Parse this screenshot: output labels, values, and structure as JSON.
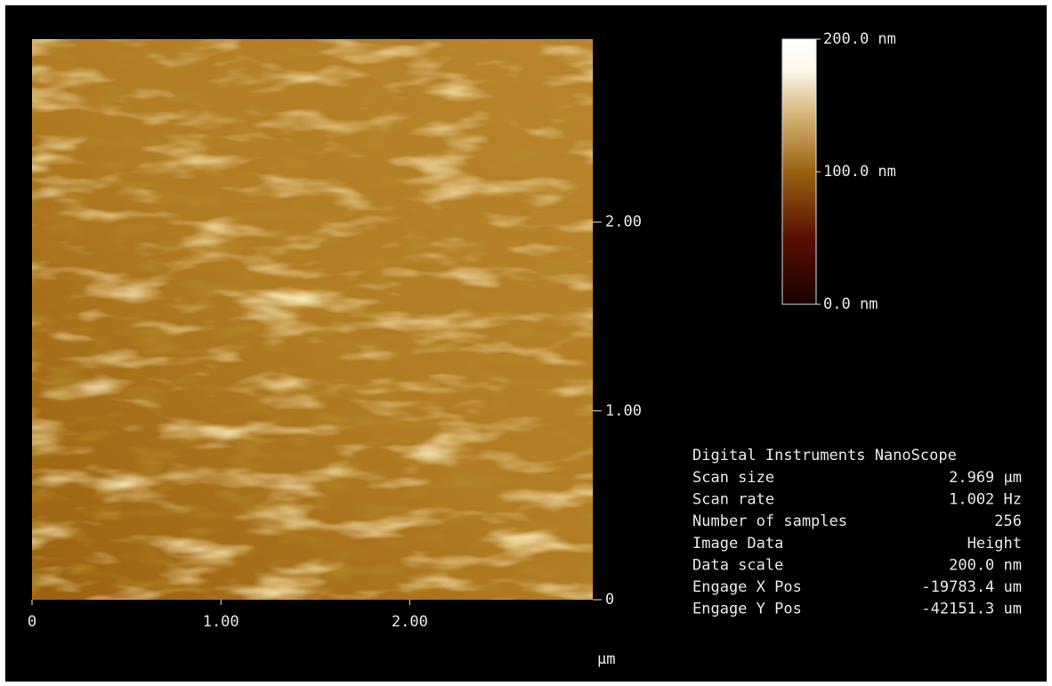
{
  "image": {
    "x_axis": {
      "range": [
        0,
        2.969
      ],
      "unit": "µm",
      "ticks": [
        {
          "value": 0,
          "label": "0"
        },
        {
          "value": 1,
          "label": "1.00"
        },
        {
          "value": 2,
          "label": "2.00"
        }
      ]
    },
    "y_axis": {
      "range": [
        0,
        2.969
      ],
      "ticks": [
        {
          "value": 0,
          "label": "0"
        },
        {
          "value": 1,
          "label": "1.00"
        },
        {
          "value": 2,
          "label": "2.00"
        }
      ]
    },
    "color_scale": {
      "range": [
        0,
        200
      ],
      "ticks": [
        {
          "value": 0,
          "label": "0.0 nm"
        },
        {
          "value": 100,
          "label": "100.0 nm"
        },
        {
          "value": 200,
          "label": "200.0 nm"
        }
      ]
    }
  },
  "info": {
    "title": "Digital Instruments NanoScope",
    "rows": [
      [
        "Scan size",
        "2.969 µm"
      ],
      [
        "Scan rate",
        "1.002 Hz"
      ],
      [
        "Number of samples",
        "256"
      ],
      [
        "Image Data",
        "Height"
      ],
      [
        "Data scale",
        "200.0 nm"
      ],
      [
        "Engage X Pos",
        "-19783.4 um"
      ],
      [
        "Engage Y Pos",
        "-42151.3 um"
      ]
    ]
  }
}
